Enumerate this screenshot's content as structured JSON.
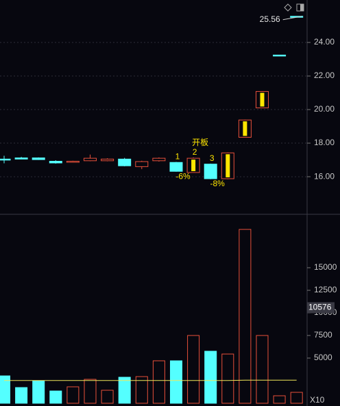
{
  "chart_data": [
    {
      "type": "candlestick",
      "open": [
        17.05,
        17.12,
        17.12,
        16.92,
        16.88,
        16.95,
        16.95,
        17.05,
        16.6,
        16.95,
        16.85,
        16.25,
        16.75,
        15.88,
        18.35,
        20.1,
        23.25,
        25.56
      ],
      "high": [
        17.25,
        17.18,
        17.15,
        16.98,
        16.95,
        17.32,
        17.1,
        17.12,
        16.95,
        17.15,
        16.88,
        17.15,
        16.78,
        17.45,
        19.4,
        21.1,
        23.25,
        25.56
      ],
      "low": [
        16.8,
        17.05,
        17.0,
        16.78,
        16.85,
        16.92,
        16.92,
        16.62,
        16.45,
        16.9,
        16.3,
        16.25,
        15.85,
        15.85,
        18.35,
        20.1,
        23.25,
        25.56
      ],
      "close": [
        17.05,
        17.05,
        17.02,
        16.82,
        16.92,
        17.1,
        17.05,
        16.65,
        16.9,
        17.1,
        16.32,
        17.1,
        15.88,
        17.42,
        19.38,
        21.08,
        23.25,
        25.56
      ],
      "up_color": "#e8503a",
      "down_color": "#54ffff",
      "marker_color": "#ffe600",
      "limit_marker": [
        false,
        false,
        false,
        false,
        false,
        false,
        false,
        false,
        false,
        false,
        false,
        true,
        false,
        true,
        true,
        true,
        false,
        false
      ],
      "labels_top": [
        null,
        null,
        null,
        null,
        null,
        null,
        null,
        null,
        null,
        null,
        null,
        "开板",
        null,
        null,
        null,
        null,
        null,
        null
      ],
      "labels_above": [
        null,
        null,
        null,
        null,
        null,
        null,
        null,
        null,
        null,
        null,
        "1",
        "2",
        "3",
        null,
        null,
        null,
        null,
        null
      ],
      "labels_below": [
        null,
        null,
        null,
        null,
        null,
        null,
        null,
        null,
        null,
        null,
        "-6%",
        null,
        "-8%",
        null,
        null,
        null,
        null,
        null
      ],
      "last_price": 25.56,
      "ylim": [
        13.8,
        26.53
      ],
      "yticks": [
        {
          "value": 16,
          "label": "16.00"
        },
        {
          "value": 18,
          "label": "18.00"
        },
        {
          "value": 20,
          "label": "20.00"
        },
        {
          "value": 22,
          "label": "22.00"
        },
        {
          "value": 24,
          "label": "24.00"
        }
      ],
      "grid": true
    },
    {
      "type": "bar",
      "values": [
        3030,
        1740,
        2500,
        1360,
        1820,
        2650,
        1440,
        2880,
        2950,
        4700,
        4700,
        7500,
        5760,
        5450,
        19240,
        7500,
        830,
        1210
      ],
      "up": [
        false,
        false,
        false,
        false,
        true,
        true,
        true,
        false,
        true,
        true,
        false,
        true,
        false,
        true,
        true,
        true,
        true,
        true
      ],
      "up_color": "#e8503a",
      "down_color": "#54ffff",
      "ma": [
        2520,
        2520,
        2520,
        2520,
        2520,
        2520,
        2520,
        2520,
        2520,
        2520,
        2520,
        2520,
        2520,
        2520,
        2560,
        2560,
        2560,
        2560
      ],
      "ma_color": "#f2e85a",
      "current_value": 10576,
      "multiplier_label": "X10",
      "ylim": [
        0,
        20760
      ],
      "yticks": [
        5000,
        7500,
        10000,
        12500,
        15000
      ]
    }
  ]
}
